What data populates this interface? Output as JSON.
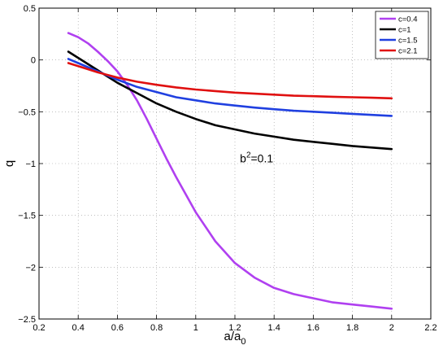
{
  "chart_data": {
    "type": "line",
    "xlabel": "a/a",
    "xlabel_sub": "0",
    "ylabel": "q",
    "xlim": [
      0.2,
      2.2
    ],
    "ylim": [
      -2.5,
      0.5
    ],
    "xticks": [
      0.2,
      0.4,
      0.6,
      0.8,
      1,
      1.2,
      1.4,
      1.6,
      1.8,
      2,
      2.2
    ],
    "xtick_labels": [
      "0.2",
      "0.4",
      "0.6",
      "0.8",
      "1",
      "1.2",
      "1.4",
      "1.6",
      "1.8",
      "2",
      "2.2"
    ],
    "yticks": [
      0.5,
      0,
      -0.5,
      -1,
      -1.5,
      -2,
      -2.5
    ],
    "ytick_labels": [
      "0.5",
      "0",
      "−0.5",
      "−1",
      "−1.5",
      "−2",
      "−2.5"
    ],
    "grid": true,
    "legend_position": "top-right",
    "annotation": {
      "base": "b",
      "sup": "2",
      "rest": "=0.1",
      "x": 1.35,
      "y": -0.95
    },
    "series": [
      {
        "name": "c=0.4",
        "color": "#b040f0",
        "x": [
          0.35,
          0.4,
          0.45,
          0.5,
          0.55,
          0.6,
          0.65,
          0.7,
          0.75,
          0.8,
          0.85,
          0.9,
          0.95,
          1.0,
          1.1,
          1.2,
          1.3,
          1.4,
          1.5,
          1.6,
          1.7,
          1.8,
          1.9,
          2.0
        ],
        "y": [
          0.26,
          0.22,
          0.16,
          0.08,
          -0.01,
          -0.11,
          -0.24,
          -0.39,
          -0.57,
          -0.76,
          -0.95,
          -1.13,
          -1.3,
          -1.47,
          -1.75,
          -1.96,
          -2.1,
          -2.2,
          -2.26,
          -2.3,
          -2.34,
          -2.36,
          -2.38,
          -2.4
        ]
      },
      {
        "name": "c=1",
        "color": "#000000",
        "x": [
          0.35,
          0.4,
          0.5,
          0.6,
          0.7,
          0.8,
          0.9,
          1.0,
          1.1,
          1.2,
          1.3,
          1.4,
          1.5,
          1.6,
          1.7,
          1.8,
          1.9,
          2.0
        ],
        "y": [
          0.08,
          0.02,
          -0.1,
          -0.22,
          -0.32,
          -0.42,
          -0.5,
          -0.57,
          -0.63,
          -0.67,
          -0.71,
          -0.74,
          -0.77,
          -0.79,
          -0.81,
          -0.83,
          -0.845,
          -0.86
        ]
      },
      {
        "name": "c=1.5",
        "color": "#2040e0",
        "x": [
          0.35,
          0.4,
          0.5,
          0.6,
          0.7,
          0.8,
          0.9,
          1.0,
          1.1,
          1.2,
          1.3,
          1.4,
          1.5,
          1.6,
          1.7,
          1.8,
          1.9,
          2.0
        ],
        "y": [
          0.01,
          -0.03,
          -0.11,
          -0.19,
          -0.26,
          -0.31,
          -0.36,
          -0.39,
          -0.42,
          -0.44,
          -0.46,
          -0.475,
          -0.49,
          -0.5,
          -0.51,
          -0.52,
          -0.53,
          -0.54
        ]
      },
      {
        "name": "c=2.1",
        "color": "#e01010",
        "x": [
          0.35,
          0.4,
          0.5,
          0.6,
          0.7,
          0.8,
          0.9,
          1.0,
          1.1,
          1.2,
          1.3,
          1.4,
          1.5,
          1.6,
          1.7,
          1.8,
          1.9,
          2.0
        ],
        "y": [
          -0.03,
          -0.06,
          -0.12,
          -0.17,
          -0.21,
          -0.24,
          -0.265,
          -0.285,
          -0.3,
          -0.315,
          -0.325,
          -0.335,
          -0.345,
          -0.35,
          -0.355,
          -0.36,
          -0.365,
          -0.37
        ]
      }
    ]
  }
}
